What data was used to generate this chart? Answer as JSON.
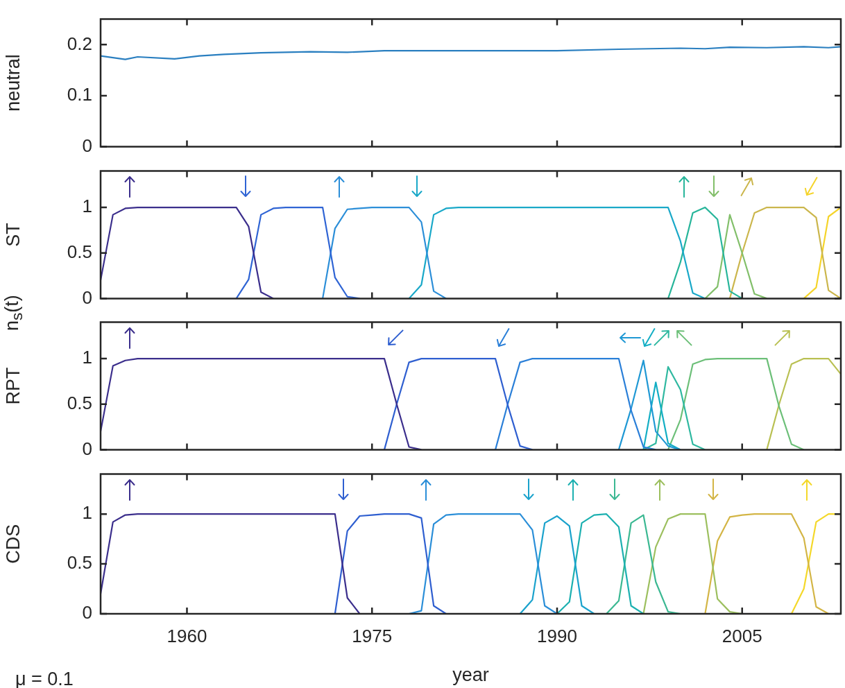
{
  "chart_data": [
    {
      "type": "line",
      "ylabel": "neutral",
      "xlim": [
        1953,
        2013
      ],
      "xticks": [
        1960,
        1975,
        1990,
        2005
      ],
      "ylim": [
        0,
        0.25
      ],
      "yticks": [
        0,
        0.1,
        0.2
      ],
      "tick_labels": "y",
      "legend": false,
      "series": [
        {
          "color": "#2a7fc0",
          "x": [
            1953,
            1955,
            1956,
            1959,
            1961,
            1963,
            1966,
            1970,
            1973,
            1976,
            1985,
            1990,
            1995,
            2000,
            2002,
            2004,
            2007,
            2010,
            2012,
            2013
          ],
          "values": [
            0.178,
            0.171,
            0.176,
            0.172,
            0.178,
            0.181,
            0.184,
            0.186,
            0.185,
            0.188,
            0.188,
            0.188,
            0.191,
            0.193,
            0.192,
            0.195,
            0.194,
            0.196,
            0.194,
            0.196
          ]
        }
      ]
    },
    {
      "type": "line",
      "ylabel": "ST",
      "xlim": [
        1953,
        2013
      ],
      "xticks": [
        1960,
        1975,
        1990,
        2005
      ],
      "ylim": [
        0,
        1.4
      ],
      "yticks": [
        0,
        0.5,
        1
      ],
      "tick_labels": "y",
      "legend": false,
      "series": [
        {
          "color": "#3b2e8c",
          "x": [
            1953,
            1954,
            1955,
            1956,
            1964,
            1965,
            1966,
            1967
          ],
          "values": [
            0.2,
            0.92,
            0.99,
            1,
            1,
            0.79,
            0.07,
            0
          ]
        },
        {
          "color": "#2f64d4",
          "x": [
            1964,
            1965,
            1966,
            1967,
            1968,
            1971,
            1972,
            1973,
            1974
          ],
          "values": [
            0,
            0.21,
            0.92,
            0.99,
            1,
            1,
            0.23,
            0.02,
            0
          ]
        },
        {
          "color": "#2b8ed8",
          "x": [
            1971,
            1972,
            1973,
            1974,
            1975,
            1978,
            1979,
            1980,
            1981
          ],
          "values": [
            0,
            0.77,
            0.98,
            0.99,
            1,
            1,
            0.84,
            0.08,
            0
          ]
        },
        {
          "color": "#19a8c8",
          "x": [
            1978,
            1979,
            1980,
            1981,
            1982,
            1999,
            2000,
            2001,
            2002
          ],
          "values": [
            0,
            0.15,
            0.92,
            0.99,
            1,
            1,
            0.63,
            0.06,
            0
          ]
        },
        {
          "color": "#27b59a",
          "x": [
            1999,
            2000,
            2001,
            2002,
            2003,
            2004,
            2005
          ],
          "values": [
            0,
            0.4,
            0.94,
            1,
            0.87,
            0.08,
            0
          ]
        },
        {
          "color": "#82bf6a",
          "x": [
            2002,
            2003,
            2004,
            2005,
            2006,
            2007
          ],
          "values": [
            0,
            0.13,
            0.92,
            0.5,
            0.05,
            0
          ]
        },
        {
          "color": "#cbb64c",
          "x": [
            2004,
            2005,
            2006,
            2007,
            2010,
            2011,
            2012,
            2013
          ],
          "values": [
            0,
            0.5,
            0.94,
            1,
            1,
            0.89,
            0.09,
            0
          ]
        },
        {
          "color": "#f5d42a",
          "x": [
            2010,
            2011,
            2012,
            2013
          ],
          "values": [
            0,
            0.12,
            0.9,
            1
          ]
        }
      ]
    },
    {
      "type": "line",
      "ylabel": "RPT",
      "xlim": [
        1953,
        2013
      ],
      "xticks": [
        1960,
        1975,
        1990,
        2005
      ],
      "ylim": [
        0,
        1.4
      ],
      "yticks": [
        0,
        0.5,
        1
      ],
      "tick_labels": "y",
      "legend": false,
      "annotations": [
        "n$_{s}$(t)"
      ],
      "series": [
        {
          "color": "#3b2e8c",
          "x": [
            1953,
            1954,
            1955,
            1956,
            1976,
            1977,
            1978,
            1979
          ],
          "values": [
            0.2,
            0.92,
            0.98,
            1,
            1,
            0.5,
            0.03,
            0
          ]
        },
        {
          "color": "#2f5fd0",
          "x": [
            1976,
            1977,
            1978,
            1979,
            1985,
            1986,
            1987,
            1988
          ],
          "values": [
            0,
            0.5,
            0.96,
            1,
            1,
            0.49,
            0.04,
            0
          ]
        },
        {
          "color": "#2a7fd8",
          "x": [
            1985,
            1986,
            1987,
            1988,
            1995,
            1996,
            1997,
            1998
          ],
          "values": [
            0,
            0.5,
            0.96,
            1,
            1,
            0.43,
            0.03,
            0
          ]
        },
        {
          "color": "#1f98d4",
          "x": [
            1995,
            1996,
            1997,
            1998,
            1999,
            2000
          ],
          "values": [
            0,
            0.45,
            0.98,
            0.2,
            0.04,
            0
          ]
        },
        {
          "color": "#13aec4",
          "x": [
            1997,
            1998,
            1999,
            2000
          ],
          "values": [
            0,
            0.74,
            0.07,
            0
          ]
        },
        {
          "color": "#2fb8a0",
          "x": [
            1997,
            1998,
            1999,
            2000,
            2001,
            2002
          ],
          "values": [
            0,
            0.07,
            0.91,
            0.66,
            0.06,
            0
          ]
        },
        {
          "color": "#6cbf78",
          "x": [
            1999,
            2000,
            2001,
            2002,
            2003,
            2007,
            2008,
            2009,
            2010
          ],
          "values": [
            0,
            0.33,
            0.94,
            0.99,
            1,
            1,
            0.47,
            0.06,
            0
          ]
        },
        {
          "color": "#b9c052",
          "x": [
            2007,
            2008,
            2009,
            2010,
            2012,
            2013
          ],
          "values": [
            0,
            0.5,
            0.94,
            1,
            1,
            0.83
          ]
        }
      ]
    },
    {
      "type": "line",
      "ylabel": "CDS",
      "xlabel": "year",
      "xlim": [
        1953,
        2013
      ],
      "xticks": [
        1960,
        1975,
        1990,
        2005
      ],
      "ylim": [
        0,
        1.4
      ],
      "yticks": [
        0,
        0.5,
        1
      ],
      "legend": false,
      "annotations": [
        "μ = 0.1"
      ],
      "series": [
        {
          "color": "#3b2e8c",
          "x": [
            1953,
            1954,
            1955,
            1956,
            1972,
            1973,
            1974
          ],
          "values": [
            0.2,
            0.92,
            0.99,
            1,
            1,
            0.16,
            0
          ]
        },
        {
          "color": "#2f5fd0",
          "x": [
            1972,
            1973,
            1974,
            1975,
            1976,
            1978,
            1979,
            1980,
            1981
          ],
          "values": [
            0,
            0.83,
            0.98,
            0.99,
            1,
            1,
            0.96,
            0.08,
            0
          ]
        },
        {
          "color": "#2a8ed8",
          "x": [
            1978,
            1979,
            1980,
            1981,
            1982,
            1987,
            1988,
            1989,
            1990
          ],
          "values": [
            0,
            0.03,
            0.9,
            0.99,
            1,
            1,
            0.84,
            0.08,
            0
          ]
        },
        {
          "color": "#1aa2cc",
          "x": [
            1987,
            1988,
            1989,
            1990,
            1991,
            1992,
            1993
          ],
          "values": [
            0,
            0.14,
            0.91,
            0.98,
            0.88,
            0.08,
            0
          ]
        },
        {
          "color": "#1cb0b0",
          "x": [
            1990,
            1991,
            1992,
            1993,
            1994,
            1995,
            1996,
            1997
          ],
          "values": [
            0,
            0.12,
            0.91,
            0.99,
            1,
            0.87,
            0.08,
            0
          ]
        },
        {
          "color": "#3bb892",
          "x": [
            1994,
            1995,
            1996,
            1997,
            1998,
            1999,
            2000
          ],
          "values": [
            0,
            0.13,
            0.91,
            0.99,
            0.32,
            0.02,
            0
          ]
        },
        {
          "color": "#9cbf5e",
          "x": [
            1997,
            1998,
            1999,
            2000,
            2002,
            2003,
            2004,
            2005
          ],
          "values": [
            0,
            0.67,
            0.95,
            1,
            1,
            0.15,
            0.02,
            0
          ]
        },
        {
          "color": "#d3b545",
          "x": [
            2002,
            2003,
            2004,
            2005,
            2006,
            2009,
            2010,
            2011,
            2012
          ],
          "values": [
            0,
            0.73,
            0.97,
            0.99,
            1,
            1,
            0.76,
            0.07,
            0
          ]
        },
        {
          "color": "#f4d82a",
          "x": [
            2009,
            2010,
            2011,
            2012,
            2013
          ],
          "values": [
            0,
            0.25,
            0.92,
            1,
            1
          ]
        }
      ]
    }
  ]
}
